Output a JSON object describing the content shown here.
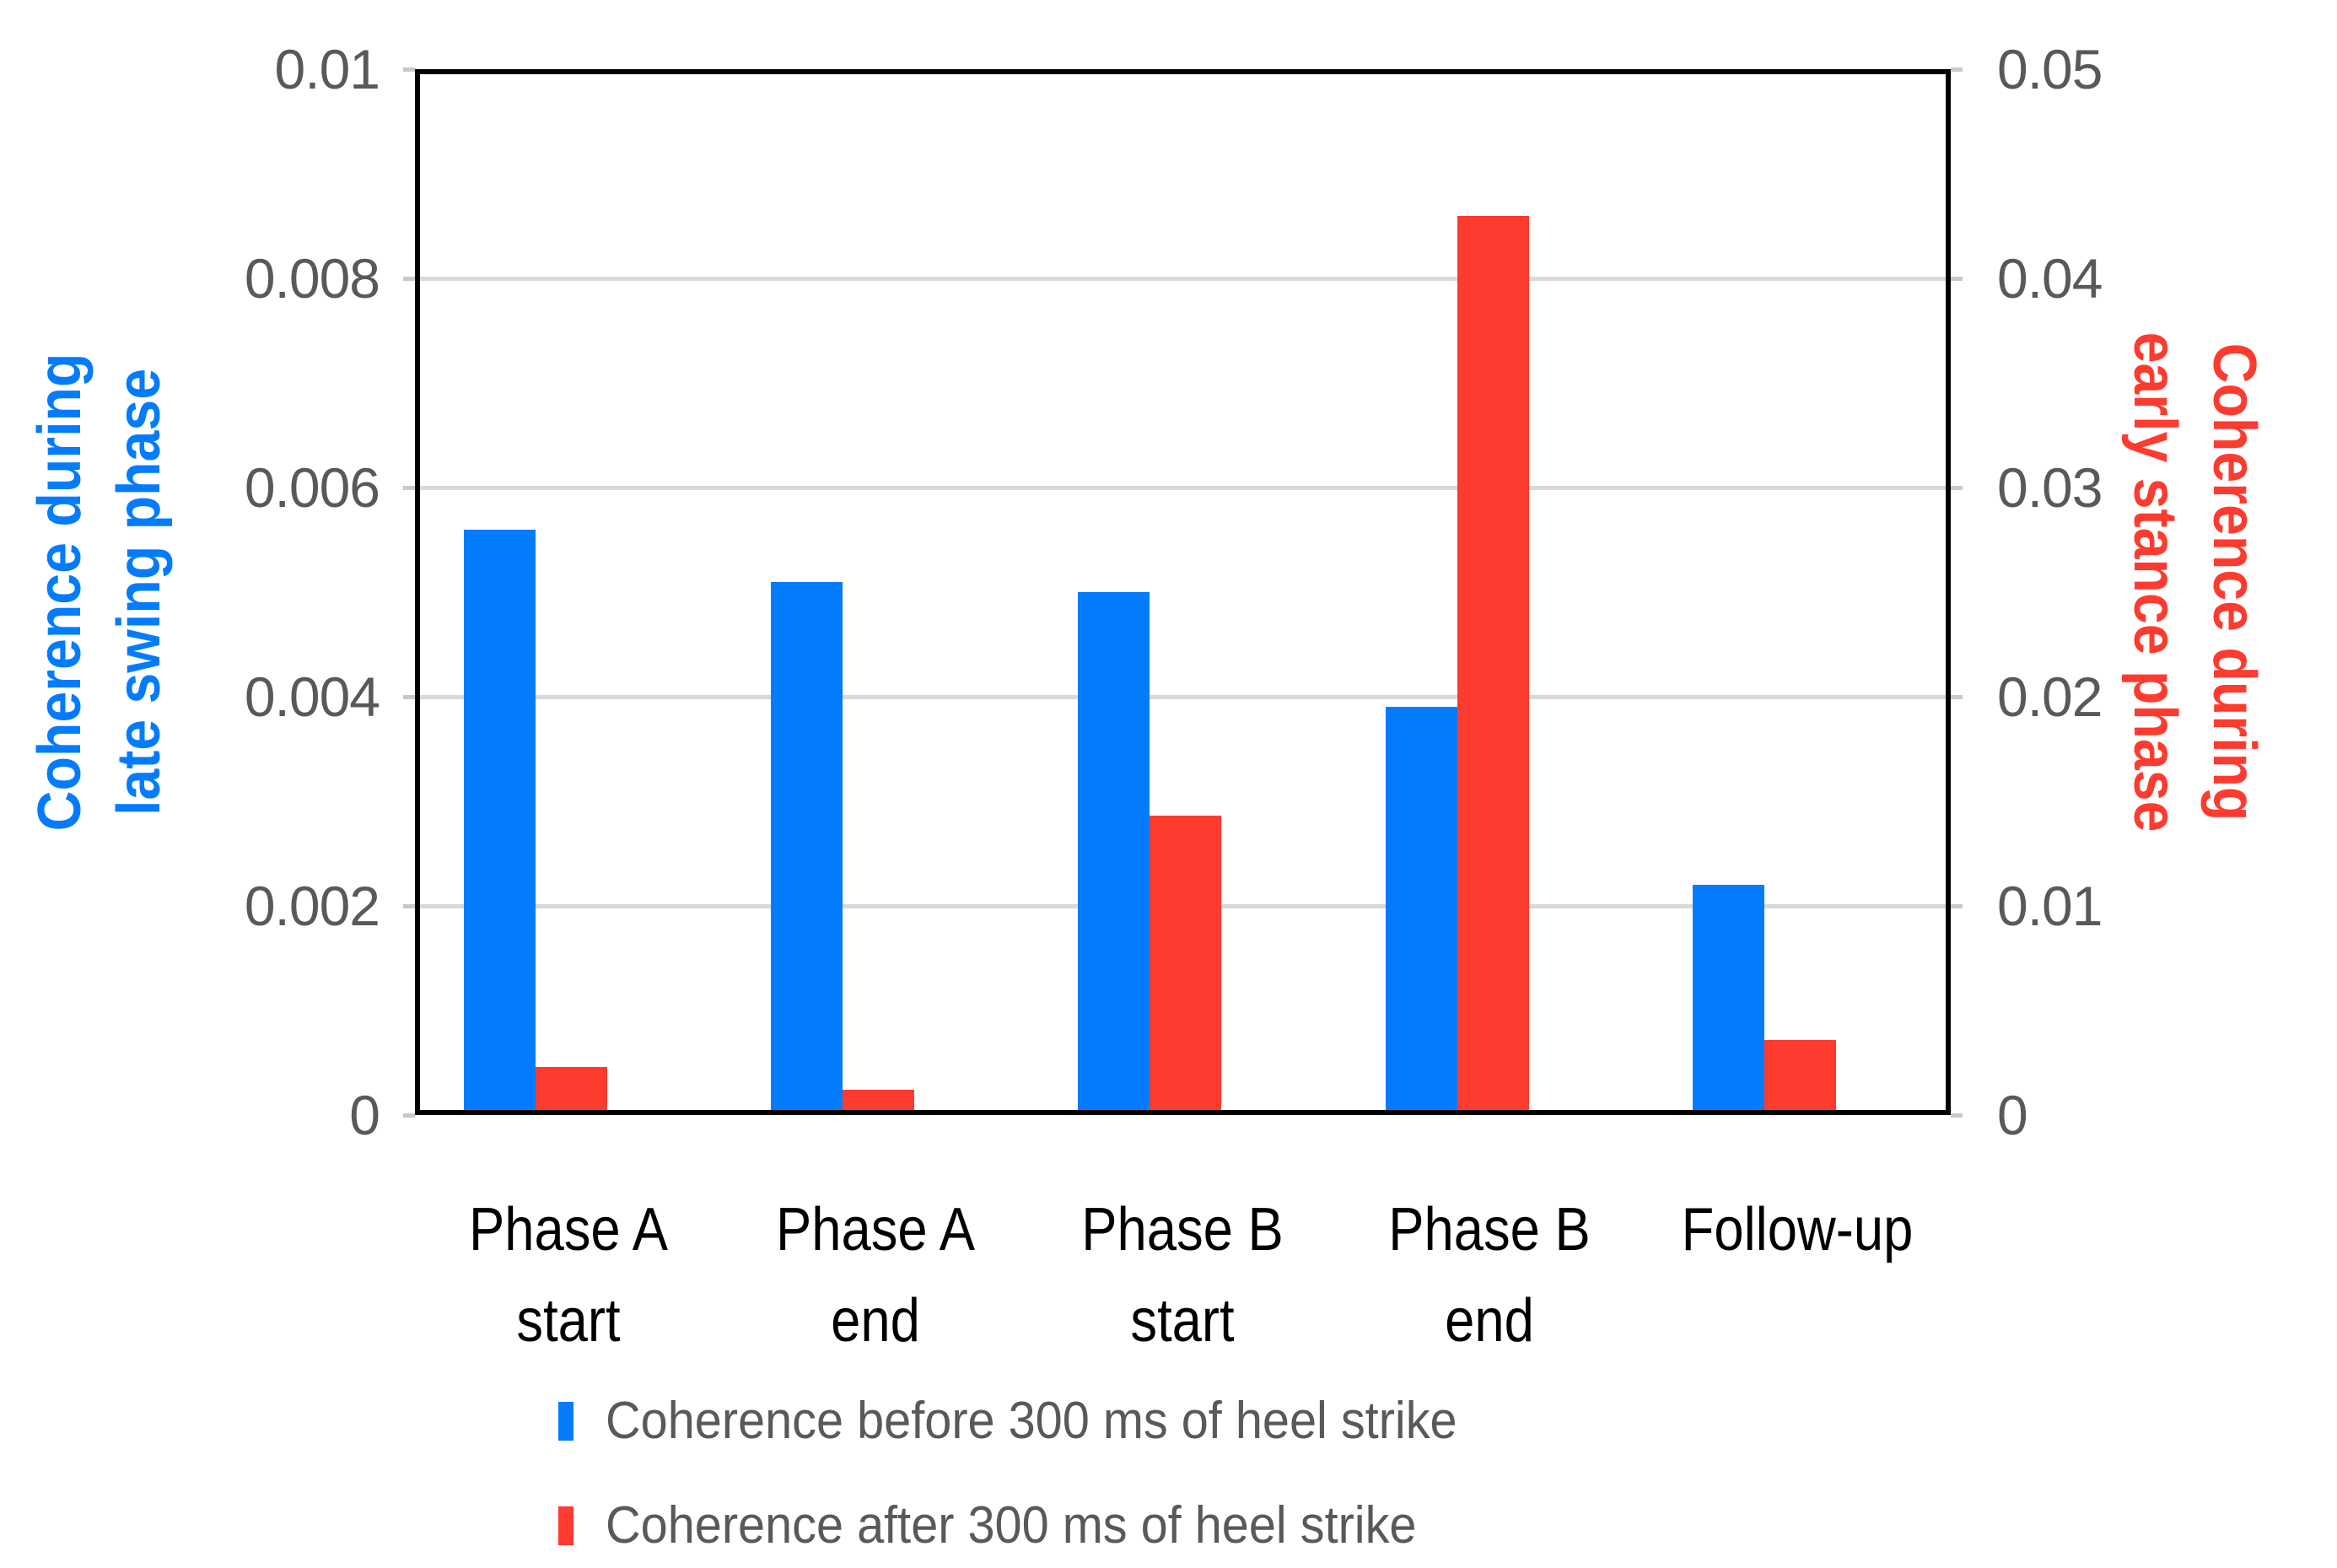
{
  "chart_data": {
    "type": "bar",
    "title": "",
    "categories": [
      [
        "Phase A",
        "start"
      ],
      [
        "Phase A",
        "end"
      ],
      [
        "Phase B",
        "start"
      ],
      [
        "Phase B",
        "end"
      ],
      [
        "Follow-up"
      ]
    ],
    "series": [
      {
        "name": "Coherence before 300 ms of heel strike",
        "axis": "left",
        "color": "#027CFD",
        "values": [
          0.0056,
          0.0051,
          0.005,
          0.0039,
          0.0022
        ]
      },
      {
        "name": "Coherence after 300 ms of heel strike",
        "axis": "right",
        "color": "#FD3B2E",
        "values": [
          0.0023,
          0.0012,
          0.0143,
          0.043,
          0.0036
        ]
      }
    ],
    "left_axis": {
      "title_line1": "Coherence during",
      "title_line2": "late swing phase",
      "color": "#027CFD",
      "min": 0,
      "max": 0.01,
      "ticks": [
        "0.01",
        "0.008",
        "0.006",
        "0.004",
        "0.002",
        "0"
      ]
    },
    "right_axis": {
      "title_line1": "Coherence during",
      "title_line2": "early stance phase",
      "color": "#FD3B2E",
      "min": 0,
      "max": 0.05,
      "ticks": [
        "0.05",
        "0.04",
        "0.03",
        "0.02",
        "0.01",
        "0"
      ]
    },
    "grid_color": "#D9D9D9",
    "tick_label_color": "#595959",
    "legend_text_color": "#595959",
    "gridlines": true,
    "legend_position": "bottom"
  }
}
